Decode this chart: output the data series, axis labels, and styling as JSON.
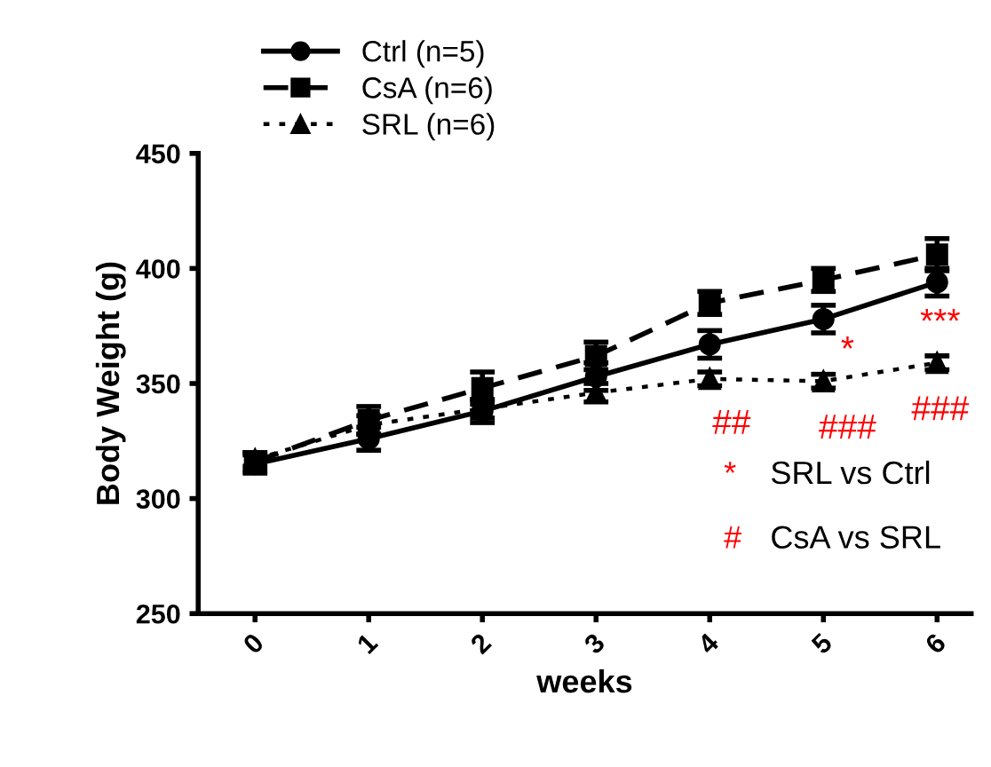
{
  "chart_data": {
    "type": "line",
    "xlabel": "weeks",
    "ylabel": "Body Weight (g)",
    "x": [
      0,
      1,
      2,
      3,
      4,
      5,
      6
    ],
    "xlim": [
      -0.5,
      6.3
    ],
    "xticks": [
      0,
      1,
      2,
      3,
      4,
      5,
      6
    ],
    "ylim": [
      250,
      450
    ],
    "yticks": [
      250,
      300,
      350,
      400,
      450
    ],
    "grid": false,
    "legend": "top left",
    "series": [
      {
        "name": "Ctrl (n=5)",
        "color": "#000000",
        "marker": "circle",
        "line_style": "solid",
        "values": [
          315,
          326,
          338,
          353,
          367,
          378,
          394
        ],
        "errors": [
          4,
          5,
          5,
          6,
          6,
          6,
          6
        ]
      },
      {
        "name": "CsA (n=6)",
        "color": "#000000",
        "marker": "square",
        "line_style": "dashed",
        "values": [
          316,
          334,
          348,
          362,
          385,
          395,
          406
        ],
        "errors": [
          4,
          6,
          7,
          6,
          5,
          5,
          7
        ]
      },
      {
        "name": "SRL (n=6)",
        "color": "#000000",
        "marker": "triangle",
        "line_style": "dotted",
        "values": [
          317,
          332,
          339,
          346,
          352,
          351,
          359
        ],
        "errors": [
          3,
          4,
          4,
          4,
          3,
          3,
          3
        ]
      }
    ],
    "annotations": [
      "##",
      "*",
      "###",
      "***",
      "###",
      "* SRL vs Ctrl",
      "# CsA vs SRL"
    ]
  }
}
